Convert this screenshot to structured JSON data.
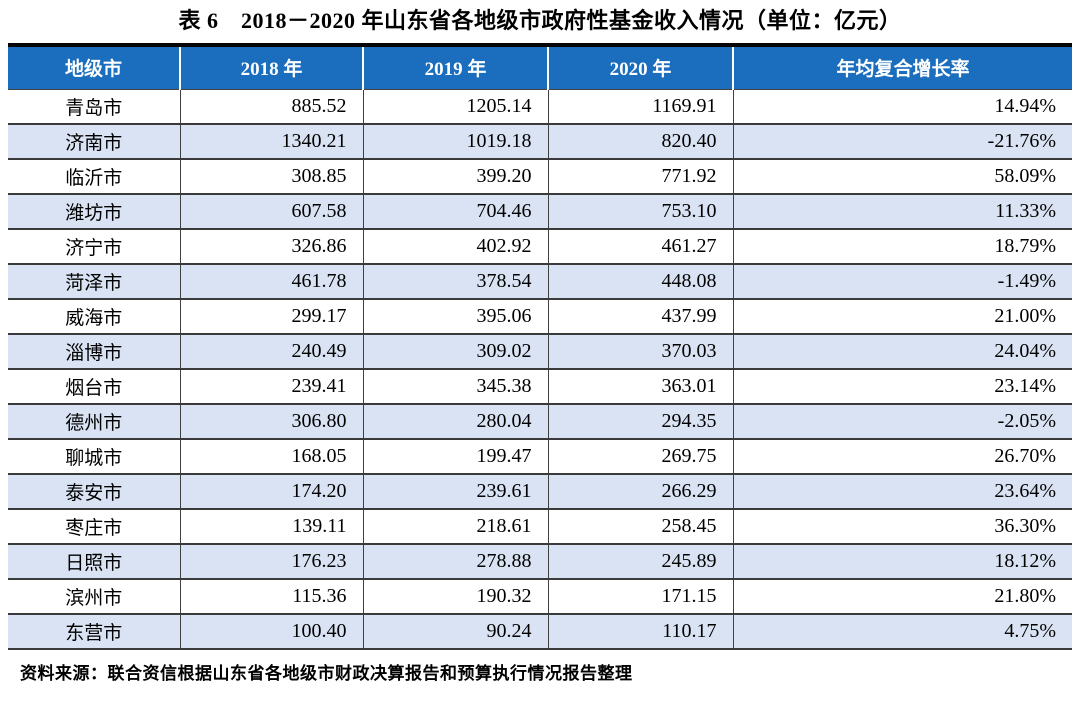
{
  "page": {
    "title": "表 6　2018－2020 年山东省各地级市政府性基金收入情况（单位：亿元）",
    "source_note": "资料来源：联合资信根据山东省各地级市财政决算报告和预算执行情况报告整理"
  },
  "table": {
    "columns": [
      "地级市",
      "2018 年",
      "2019 年",
      "2020 年",
      "年均复合增长率"
    ],
    "rows": [
      [
        "青岛市",
        "885.52",
        "1205.14",
        "1169.91",
        "14.94%"
      ],
      [
        "济南市",
        "1340.21",
        "1019.18",
        "820.40",
        "-21.76%"
      ],
      [
        "临沂市",
        "308.85",
        "399.20",
        "771.92",
        "58.09%"
      ],
      [
        "潍坊市",
        "607.58",
        "704.46",
        "753.10",
        "11.33%"
      ],
      [
        "济宁市",
        "326.86",
        "402.92",
        "461.27",
        "18.79%"
      ],
      [
        "菏泽市",
        "461.78",
        "378.54",
        "448.08",
        "-1.49%"
      ],
      [
        "威海市",
        "299.17",
        "395.06",
        "437.99",
        "21.00%"
      ],
      [
        "淄博市",
        "240.49",
        "309.02",
        "370.03",
        "24.04%"
      ],
      [
        "烟台市",
        "239.41",
        "345.38",
        "363.01",
        "23.14%"
      ],
      [
        "德州市",
        "306.80",
        "280.04",
        "294.35",
        "-2.05%"
      ],
      [
        "聊城市",
        "168.05",
        "199.47",
        "269.75",
        "26.70%"
      ],
      [
        "泰安市",
        "174.20",
        "239.61",
        "266.29",
        "23.64%"
      ],
      [
        "枣庄市",
        "139.11",
        "218.61",
        "258.45",
        "36.30%"
      ],
      [
        "日照市",
        "176.23",
        "278.88",
        "245.89",
        "18.12%"
      ],
      [
        "滨州市",
        "115.36",
        "190.32",
        "171.15",
        "21.80%"
      ],
      [
        "东营市",
        "100.40",
        "90.24",
        "110.17",
        "4.75%"
      ]
    ]
  },
  "colors": {
    "header_bg": "#1b6ebe",
    "header_text": "#ffffff",
    "stripe_bg": "#dae3f3"
  }
}
